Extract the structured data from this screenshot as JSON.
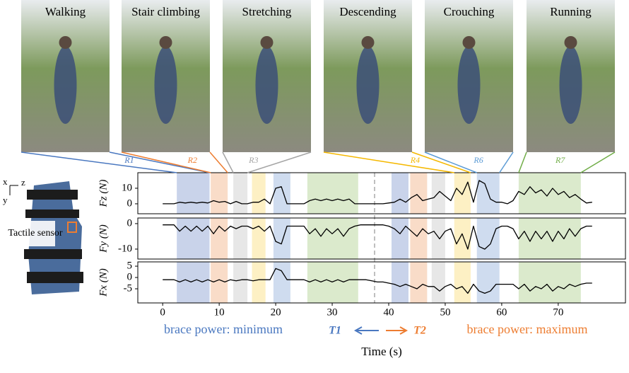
{
  "chart_data": {
    "type": "line",
    "photos": [
      {
        "label": "Walking",
        "region": 0,
        "tag": "R1",
        "color": "#4a78c0"
      },
      {
        "label": "Stair climbing",
        "region": 1,
        "tag": "R2",
        "color": "#ed7d31"
      },
      {
        "label": "Stretching",
        "region": 2,
        "tag": "R3",
        "color": "#a5a5a5"
      },
      {
        "label": "Descending",
        "region": 9,
        "tag": "R4",
        "color": "#f5b800"
      },
      {
        "label": "Crouching",
        "region": 10,
        "tag": "R6",
        "color": "#5b9bd5"
      },
      {
        "label": "Running",
        "region": 11,
        "tag": "R7",
        "color": "#70ad47"
      }
    ],
    "regions": [
      {
        "start": 2.5,
        "end": 8.3,
        "color": "#c9d3ea"
      },
      {
        "start": 8.5,
        "end": 11.5,
        "color": "#f9dcc8"
      },
      {
        "start": 12.5,
        "end": 15,
        "color": "#e7e7e7"
      },
      {
        "start": 15.8,
        "end": 18.2,
        "color": "#fdf0c4"
      },
      {
        "start": 19.6,
        "end": 22.6,
        "color": "#cfdcef"
      },
      {
        "start": 25.6,
        "end": 34.6,
        "color": "#dbeacc"
      },
      {
        "start": 40.5,
        "end": 43.5,
        "color": "#c9d3ea"
      },
      {
        "start": 43.8,
        "end": 46.8,
        "color": "#f9dcc8"
      },
      {
        "start": 47.6,
        "end": 50,
        "color": "#e7e7e7"
      },
      {
        "start": 51.6,
        "end": 54.5,
        "color": "#fdf0c4"
      },
      {
        "start": 55.6,
        "end": 59.6,
        "color": "#cfdcef"
      },
      {
        "start": 63,
        "end": 74,
        "color": "#dbeacc"
      }
    ],
    "divider": 37.5,
    "x": [
      0,
      1,
      2,
      3,
      4,
      5,
      6,
      7,
      8,
      9,
      10,
      11,
      12,
      13,
      14,
      15,
      16,
      17,
      18,
      19,
      20,
      21,
      22,
      23,
      24,
      25,
      26,
      27,
      28,
      29,
      30,
      31,
      32,
      33,
      34,
      35,
      36,
      37,
      38,
      39,
      40,
      41,
      42,
      43,
      44,
      45,
      46,
      47,
      48,
      49,
      50,
      51,
      52,
      53,
      54,
      55,
      56,
      57,
      58,
      59,
      60,
      61,
      62,
      63,
      64,
      65,
      66,
      67,
      68,
      69,
      70,
      71,
      72,
      73,
      74,
      75,
      76
    ],
    "xlim": [
      -4.4,
      81.9
    ],
    "xticks": [
      0,
      10,
      20,
      30,
      40,
      50,
      60,
      70
    ],
    "xlabel": "Time (s)",
    "panels": [
      {
        "ylabel": "Fz (N)",
        "ylim": [
          -6.4,
          20
        ],
        "yticks": [
          0,
          10
        ],
        "color": "#000000",
        "values": [
          0,
          0,
          0,
          1,
          0.5,
          1,
          0.5,
          1,
          0.5,
          2,
          1,
          1.5,
          0,
          1.5,
          0,
          0,
          1,
          1,
          3,
          0,
          10,
          11,
          0,
          0,
          0,
          0,
          2,
          3,
          2,
          3,
          2,
          3,
          2,
          3,
          0,
          0,
          0,
          0,
          0,
          0,
          0.5,
          1,
          3,
          1,
          4,
          6,
          2,
          3,
          4,
          8,
          5,
          2,
          10,
          6,
          14,
          1,
          15,
          13,
          3,
          1,
          1,
          0,
          2,
          8,
          6,
          11,
          7,
          9,
          5,
          10,
          6,
          8,
          4,
          6,
          3,
          0.5,
          1
        ]
      },
      {
        "ylabel": "Fy (N)",
        "ylim": [
          -13.9,
          2.2
        ],
        "yticks": [
          0,
          -10
        ],
        "color": "#000000",
        "values": [
          -0.5,
          -0.5,
          -0.5,
          -3,
          -1,
          -3,
          -1,
          -3,
          -1,
          -4,
          -1,
          -3,
          -1,
          -2,
          -1,
          -1,
          -2,
          -1,
          -3,
          -1,
          -7,
          -8,
          -1,
          -1,
          -1,
          -1,
          -4,
          -2,
          -5,
          -2,
          -4,
          -2,
          -5,
          -2,
          -1,
          -0.5,
          -0.5,
          -0.5,
          -0.5,
          -0.5,
          -1,
          -2,
          -4,
          -1,
          -3,
          -5,
          -2,
          -4,
          -3,
          -6,
          -3,
          -2,
          -8,
          -4,
          -10,
          -1,
          -9,
          -10,
          -8,
          -2,
          -1,
          -1,
          -2,
          -6,
          -3,
          -7,
          -3,
          -6,
          -3,
          -7,
          -3,
          -6,
          -2,
          -5,
          -2,
          -1,
          -1
        ]
      },
      {
        "ylabel": "Fx (N)",
        "ylim": [
          -11.25,
          6.9
        ],
        "yticks": [
          5,
          0,
          -5
        ],
        "color": "#000000",
        "values": [
          -1,
          -1,
          -1,
          -2,
          -1,
          -2,
          -1,
          -2,
          -1,
          -2,
          -1,
          -2,
          -1,
          -1.5,
          -1,
          -1,
          -1.5,
          -1,
          -1,
          -1,
          4,
          3,
          -1,
          -1,
          -1,
          -1,
          -2,
          -1,
          -2,
          -1,
          -2,
          -1,
          -2,
          -1,
          -1,
          -1,
          -1,
          -1.5,
          -2,
          -2,
          -2.5,
          -3,
          -4,
          -3,
          -4,
          -5,
          -3,
          -4,
          -4,
          -6,
          -4,
          -3,
          -5,
          -4,
          -7,
          -3,
          -6,
          -7,
          -6,
          -3,
          -3,
          -3,
          -3,
          -5,
          -3,
          -6,
          -4,
          -5,
          -3,
          -6,
          -4,
          -5,
          -3,
          -4,
          -3,
          -2.5,
          -2.5
        ]
      }
    ],
    "min_label": "brace power: minimum",
    "max_label": "brace power: maximum",
    "t1": "T1",
    "t2": "T2",
    "axes": {
      "x": "x",
      "z": "z",
      "y": "y"
    },
    "sensor_label": "Tactile sensor"
  }
}
